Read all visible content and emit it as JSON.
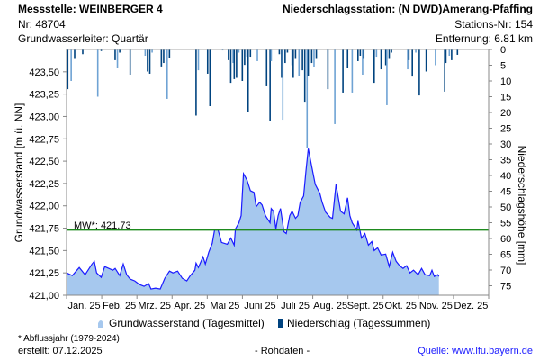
{
  "header": {
    "station_label": "Messstelle: WEINBERGER 4",
    "nr": "Nr: 48704",
    "aquifer": "Grundwasserleiter: Quartär",
    "precip_station": "Niederschlagsstation: (N DWD)Amerang-Pfaffing",
    "station_nr": "Stations-Nr: 154",
    "distance": "Entfernung: 6.81 km"
  },
  "footer": {
    "note": "* Abflussjahr (1979-2024)",
    "created": "erstellt:  07.12.2025",
    "raw": "- Rohdaten -",
    "source": "Quelle: www.lfu.bayern.de"
  },
  "colors": {
    "area_fill": "#a6c8ee",
    "line": "#1a1aff",
    "precip": "#00437f",
    "precip_light": "#6fa3d4",
    "mean": "#1e8a1e"
  },
  "chart_data": {
    "type": "area",
    "ylabel": "Grundwasserstand [m ü. NN]",
    "y2label": "Niederschlagshöhe [mm]",
    "ylim": [
      421.0,
      423.75
    ],
    "y2lim": [
      0,
      78
    ],
    "yticks": [
      "421,00",
      "421,25",
      "421,50",
      "421,75",
      "422,00",
      "422,25",
      "422,50",
      "422,75",
      "423,00",
      "423,25",
      "423,50"
    ],
    "y2ticks": [
      "0",
      "5",
      "10",
      "15",
      "20",
      "25",
      "30",
      "35",
      "40",
      "45",
      "50",
      "55",
      "60",
      "65",
      "70",
      "75"
    ],
    "xlim_days": [
      0,
      365
    ],
    "xticks": [
      "Jan. 25",
      "Feb. 25",
      "Mrz. 25",
      "Apr. 25",
      "Mai 25",
      "Juni 25",
      "Juli 25",
      "Aug. 25",
      "Sept. 25",
      "Okt. 25",
      "Nov. 25",
      "Dez. 25"
    ],
    "mean": {
      "label": "MW*: 421.73",
      "value": 421.73
    },
    "legend": [
      {
        "label": "Grundwasserstand (Tagesmittel)"
      },
      {
        "label": "Niederschlag (Tagessummen)"
      }
    ],
    "groundwater": {
      "name": "Grundwasserstand (Tagesmittel)",
      "days": [
        0,
        5,
        11,
        16,
        22,
        24,
        26,
        30,
        33,
        40,
        42,
        46,
        49,
        52,
        55,
        59,
        63,
        67,
        71,
        73,
        77,
        81,
        85,
        89,
        92,
        96,
        100,
        104,
        107,
        111,
        112,
        114,
        118,
        120,
        123,
        126,
        128,
        131,
        134,
        139,
        142,
        145,
        146,
        149,
        151,
        153,
        156,
        159,
        162,
        164,
        167,
        169,
        172,
        176,
        177,
        179,
        181,
        183,
        185,
        188,
        190,
        193,
        195,
        198,
        200,
        202,
        205,
        207,
        209,
        212,
        215,
        219,
        221,
        224,
        228,
        230,
        233,
        237,
        240,
        243,
        245,
        247,
        251,
        252,
        255,
        258,
        261,
        264,
        266,
        269,
        272,
        276,
        279,
        282,
        285,
        288,
        291,
        294,
        297,
        300,
        304,
        307,
        310,
        314,
        316,
        318,
        321,
        322
      ],
      "values": [
        421.25,
        421.22,
        421.31,
        421.23,
        421.35,
        421.38,
        421.25,
        421.2,
        421.32,
        421.28,
        421.3,
        421.22,
        421.35,
        421.23,
        421.18,
        421.16,
        421.12,
        421.1,
        421.13,
        421.07,
        421.08,
        421.07,
        421.19,
        421.27,
        421.25,
        421.27,
        421.19,
        421.16,
        421.22,
        421.28,
        421.36,
        421.31,
        421.43,
        421.35,
        421.48,
        421.58,
        421.73,
        421.73,
        421.59,
        421.57,
        421.64,
        421.56,
        421.74,
        421.81,
        421.89,
        422.36,
        422.29,
        422.17,
        422.15,
        421.99,
        422.04,
        422.01,
        421.89,
        421.81,
        421.97,
        421.94,
        421.74,
        421.89,
        421.97,
        421.71,
        421.69,
        421.89,
        421.94,
        421.86,
        421.89,
        422.04,
        422.11,
        422.39,
        422.64,
        422.44,
        422.24,
        422.14,
        422.04,
        421.93,
        421.87,
        421.86,
        422.24,
        421.94,
        421.91,
        422.09,
        421.89,
        421.81,
        421.73,
        421.83,
        421.64,
        421.69,
        421.56,
        421.6,
        421.5,
        421.53,
        421.45,
        421.46,
        421.32,
        421.48,
        421.38,
        421.33,
        421.3,
        421.33,
        421.25,
        421.28,
        421.23,
        421.3,
        421.23,
        421.22,
        421.28,
        421.21,
        421.23,
        421.21
      ]
    },
    "precipitation": {
      "name": "Niederschlag (Tagessummen)",
      "days": [
        1,
        4,
        7,
        14,
        27,
        30,
        42,
        44,
        46,
        55,
        68,
        70,
        72,
        74,
        82,
        84,
        87,
        89,
        112,
        114,
        122,
        124,
        135,
        140,
        142,
        144,
        145,
        147,
        149,
        152,
        154,
        156,
        157,
        159,
        165,
        173,
        176,
        177,
        184,
        186,
        187,
        189,
        191,
        195,
        196,
        198,
        201,
        204,
        206,
        208,
        209,
        212,
        214,
        216,
        226,
        232,
        239,
        243,
        247,
        252,
        254,
        256,
        257,
        266,
        268,
        272,
        276,
        277,
        279,
        281,
        295,
        296,
        299,
        302,
        305,
        311,
        319,
        327,
        328,
        331,
        333,
        338
      ],
      "mm": [
        12.6,
        10,
        3,
        1.5,
        15,
        0.5,
        3.4,
        6,
        1,
        8,
        2,
        7,
        7.7,
        1,
        5.4,
        4.3,
        15.7,
        2.6,
        21,
        6.6,
        7.7,
        18,
        0.3,
        3.4,
        10.6,
        4.3,
        9.4,
        9,
        1,
        10,
        4.9,
        2.3,
        20,
        2.3,
        3.7,
        11.7,
        22.6,
        3.7,
        1.5,
        9,
        22.3,
        4.3,
        1,
        5,
        9,
        3,
        8.3,
        6.6,
        16.6,
        31.4,
        8.3,
        4.3,
        5.7,
        3,
        12.6,
        23.7,
        13.7,
        6,
        13.7,
        3.7,
        2,
        8,
        3,
        10.6,
        2.3,
        6.3,
        5,
        17.7,
        3,
        1,
        6.3,
        3.4,
        8.6,
        1,
        14.6,
        7,
        5,
        13.4,
        4.3,
        2,
        3.4,
        1.7
      ]
    }
  }
}
